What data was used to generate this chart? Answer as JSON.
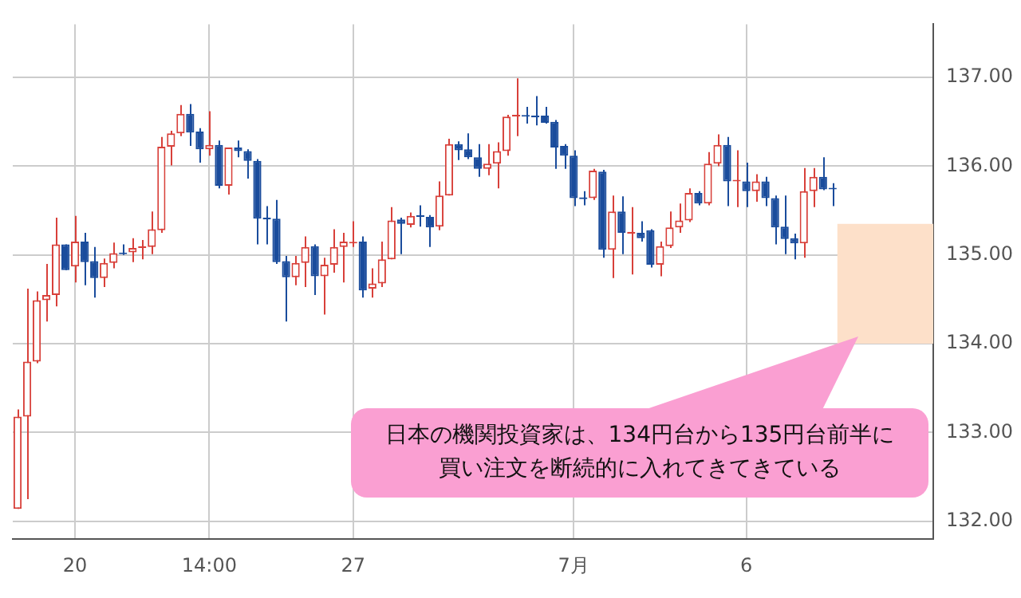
{
  "chart_data": {
    "type": "candlestick",
    "categories": [
      null,
      null,
      null,
      null,
      null,
      null,
      "20",
      null,
      null,
      null,
      null,
      null,
      null,
      null,
      null,
      null,
      null,
      null,
      null,
      null,
      "14:00",
      null,
      null,
      null,
      null,
      null,
      null,
      null,
      null,
      null,
      null,
      null,
      null,
      null,
      null,
      "27",
      null,
      null,
      null,
      null,
      null,
      null,
      null,
      null,
      null,
      null,
      null,
      null,
      null,
      null,
      null,
      null,
      null,
      null,
      null,
      null,
      null,
      null,
      "7月",
      null,
      null,
      null,
      null,
      null,
      null,
      null,
      null,
      null,
      null,
      null,
      null,
      null,
      null,
      null,
      null,
      null,
      "6",
      null,
      null,
      null,
      null,
      null,
      null,
      null,
      null,
      null,
      null,
      null,
      null,
      null,
      null,
      null,
      null,
      null,
      null,
      null
    ],
    "ohlc": [
      [
        132.14,
        133.26,
        132.14,
        133.18
      ],
      [
        133.18,
        134.62,
        132.25,
        133.8
      ],
      [
        133.8,
        134.59,
        133.78,
        134.49
      ],
      [
        134.49,
        134.9,
        134.25,
        134.55
      ],
      [
        134.55,
        135.42,
        134.42,
        135.12
      ],
      [
        135.12,
        135.12,
        134.83,
        134.83
      ],
      [
        134.87,
        135.44,
        134.69,
        135.15
      ],
      [
        135.15,
        135.25,
        134.66,
        134.92
      ],
      [
        134.93,
        135.09,
        134.52,
        134.74
      ],
      [
        134.74,
        134.96,
        134.64,
        134.91
      ],
      [
        134.91,
        135.14,
        134.85,
        135.02
      ],
      [
        135.02,
        135.12,
        135.0,
        135.01
      ],
      [
        135.03,
        135.19,
        134.92,
        135.08
      ],
      [
        135.08,
        135.17,
        134.95,
        135.1
      ],
      [
        135.09,
        135.49,
        135.01,
        135.29
      ],
      [
        135.28,
        136.33,
        135.25,
        136.22
      ],
      [
        136.22,
        136.4,
        136.01,
        136.37
      ],
      [
        136.37,
        136.69,
        136.34,
        136.59
      ],
      [
        136.59,
        136.7,
        136.23,
        136.38
      ],
      [
        136.39,
        136.43,
        136.04,
        136.19
      ],
      [
        136.19,
        136.62,
        136.12,
        136.24
      ],
      [
        136.24,
        136.29,
        135.75,
        135.78
      ],
      [
        135.78,
        136.21,
        135.68,
        136.21
      ],
      [
        136.21,
        136.29,
        136.1,
        136.17
      ],
      [
        136.17,
        136.19,
        135.86,
        136.06
      ],
      [
        136.06,
        136.08,
        135.12,
        135.41
      ],
      [
        135.42,
        135.55,
        135.12,
        135.4
      ],
      [
        135.41,
        135.62,
        134.9,
        134.92
      ],
      [
        134.93,
        134.99,
        134.25,
        134.75
      ],
      [
        134.75,
        134.99,
        134.66,
        134.91
      ],
      [
        134.91,
        135.21,
        134.64,
        135.09
      ],
      [
        135.1,
        135.12,
        134.55,
        134.76
      ],
      [
        134.76,
        134.97,
        134.33,
        134.89
      ],
      [
        134.89,
        135.29,
        134.8,
        135.09
      ],
      [
        135.09,
        135.25,
        134.69,
        135.15
      ],
      [
        135.13,
        135.38,
        135.09,
        135.14
      ],
      [
        135.15,
        135.21,
        134.52,
        134.6
      ],
      [
        134.62,
        134.85,
        134.52,
        134.68
      ],
      [
        134.68,
        135.15,
        134.64,
        134.95
      ],
      [
        134.95,
        135.54,
        134.95,
        135.39
      ],
      [
        135.4,
        135.42,
        135.01,
        135.35
      ],
      [
        135.34,
        135.48,
        135.31,
        135.44
      ],
      [
        135.44,
        135.56,
        135.32,
        135.43
      ],
      [
        135.43,
        135.45,
        135.09,
        135.31
      ],
      [
        135.32,
        135.83,
        135.28,
        135.67
      ],
      [
        135.67,
        136.31,
        135.67,
        136.25
      ],
      [
        136.25,
        136.28,
        136.07,
        136.18
      ],
      [
        136.19,
        136.37,
        136.08,
        136.1
      ],
      [
        136.1,
        136.25,
        135.88,
        135.97
      ],
      [
        135.97,
        136.25,
        135.9,
        136.03
      ],
      [
        136.03,
        136.27,
        135.75,
        136.17
      ],
      [
        136.17,
        136.58,
        136.12,
        136.56
      ],
      [
        136.56,
        136.99,
        136.34,
        136.58
      ],
      [
        136.57,
        136.67,
        136.48,
        136.56
      ],
      [
        136.57,
        136.79,
        136.46,
        136.55
      ],
      [
        136.57,
        136.67,
        136.48,
        136.49
      ],
      [
        136.5,
        136.52,
        135.97,
        136.21
      ],
      [
        136.23,
        136.25,
        135.97,
        136.12
      ],
      [
        136.12,
        136.18,
        135.55,
        135.64
      ],
      [
        135.65,
        135.72,
        135.56,
        135.63
      ],
      [
        135.64,
        135.97,
        135.62,
        135.95
      ],
      [
        135.94,
        135.96,
        134.97,
        135.06
      ],
      [
        135.06,
        135.67,
        134.74,
        135.49
      ],
      [
        135.49,
        135.66,
        135.01,
        135.25
      ],
      [
        135.24,
        135.54,
        134.78,
        135.26
      ],
      [
        135.25,
        135.38,
        135.15,
        135.19
      ],
      [
        135.28,
        135.29,
        134.86,
        134.89
      ],
      [
        134.89,
        135.15,
        134.76,
        135.1
      ],
      [
        135.1,
        135.49,
        135.08,
        135.31
      ],
      [
        135.31,
        135.58,
        135.25,
        135.39
      ],
      [
        135.39,
        135.75,
        135.37,
        135.7
      ],
      [
        135.7,
        135.72,
        135.56,
        135.58
      ],
      [
        135.58,
        136.16,
        135.56,
        136.03
      ],
      [
        136.03,
        136.36,
        136.0,
        136.24
      ],
      [
        136.24,
        136.33,
        135.55,
        135.83
      ],
      [
        135.83,
        136.18,
        135.54,
        135.84
      ],
      [
        135.83,
        136.04,
        135.54,
        135.72
      ],
      [
        135.72,
        135.91,
        135.6,
        135.83
      ],
      [
        135.83,
        135.88,
        135.55,
        135.64
      ],
      [
        135.64,
        135.67,
        135.12,
        135.31
      ],
      [
        135.32,
        135.67,
        135.01,
        135.18
      ],
      [
        135.19,
        135.24,
        134.95,
        135.13
      ],
      [
        135.13,
        135.98,
        134.97,
        135.72
      ],
      [
        135.72,
        135.98,
        135.54,
        135.88
      ],
      [
        135.88,
        136.1,
        135.73,
        135.74
      ],
      [
        135.75,
        135.81,
        135.55,
        135.74
      ],
      null,
      null,
      null,
      null,
      null,
      null,
      null,
      null,
      null,
      null
    ],
    "ylim": [
      131.8,
      137.6
    ],
    "yticks": [
      {
        "value": 132,
        "label": "132.00"
      },
      {
        "value": 133,
        "label": "133.00"
      },
      {
        "value": 134,
        "label": "134.00"
      },
      {
        "value": 135,
        "label": "135.00"
      },
      {
        "value": 136,
        "label": "136.00"
      },
      {
        "value": 137,
        "label": "137.00"
      }
    ],
    "grid": true,
    "bands": [
      {
        "axis": "y",
        "from": 134,
        "to": 135.35,
        "color": "#fde0c9"
      }
    ],
    "annotations": [
      "日本の機関投資家は、134円台から135円台前半に買い注文を断続的に入れてきてきている"
    ]
  }
}
